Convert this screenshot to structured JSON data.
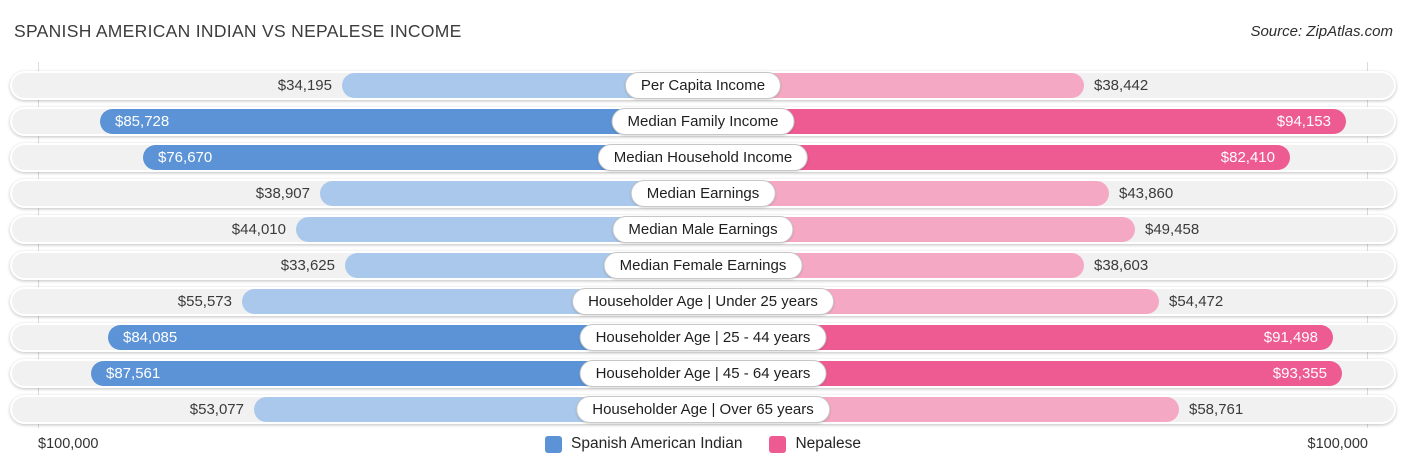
{
  "header": {
    "title": "SPANISH AMERICAN INDIAN VS NEPALESE INCOME",
    "source": "Source: ZipAtlas.com"
  },
  "axis": {
    "left_max_label": "$100,000",
    "right_max_label": "$100,000",
    "max_value": 100000
  },
  "legend": [
    {
      "label": "Spanish American Indian",
      "color": "#5b93d6"
    },
    {
      "label": "Nepalese",
      "color": "#ee5a92"
    }
  ],
  "chart_data": {
    "type": "bar",
    "orientation": "diverging-horizontal",
    "title": "Spanish American Indian vs Nepalese Income",
    "xlim": [
      0,
      100000
    ],
    "grid": "edge-lines-only",
    "legend_position": "bottom-center",
    "colors": {
      "blue": "#5b93d6",
      "blue_light": "#a9c8ec",
      "pink": "#ee5a92",
      "pink_light": "#f5a8c3"
    },
    "categories": [
      "Per Capita Income",
      "Median Family Income",
      "Median Household Income",
      "Median Earnings",
      "Median Male Earnings",
      "Median Female Earnings",
      "Householder Age | Under 25 years",
      "Householder Age | 25 - 44 years",
      "Householder Age | 45 - 64 years",
      "Householder Age | Over 65 years"
    ],
    "series": [
      {
        "name": "Spanish American Indian",
        "values": [
          34195,
          85728,
          76670,
          38907,
          44010,
          33625,
          55573,
          84085,
          87561,
          53077
        ]
      },
      {
        "name": "Nepalese",
        "values": [
          38442,
          94153,
          82410,
          43860,
          49458,
          38603,
          54472,
          91498,
          93355,
          58761
        ]
      }
    ],
    "rows": [
      {
        "label": "Per Capita Income",
        "left_value": 34195,
        "left_label": "$34,195",
        "right_value": 38442,
        "right_label": "$38,442",
        "dark": false
      },
      {
        "label": "Median Family Income",
        "left_value": 85728,
        "left_label": "$85,728",
        "right_value": 94153,
        "right_label": "$94,153",
        "dark": true
      },
      {
        "label": "Median Household Income",
        "left_value": 76670,
        "left_label": "$76,670",
        "right_value": 82410,
        "right_label": "$82,410",
        "dark": true
      },
      {
        "label": "Median Earnings",
        "left_value": 38907,
        "left_label": "$38,907",
        "right_value": 43860,
        "right_label": "$43,860",
        "dark": false
      },
      {
        "label": "Median Male Earnings",
        "left_value": 44010,
        "left_label": "$44,010",
        "right_value": 49458,
        "right_label": "$49,458",
        "dark": false
      },
      {
        "label": "Median Female Earnings",
        "left_value": 33625,
        "left_label": "$33,625",
        "right_value": 38603,
        "right_label": "$38,603",
        "dark": false
      },
      {
        "label": "Householder Age | Under 25 years",
        "left_value": 55573,
        "left_label": "$55,573",
        "right_value": 54472,
        "right_label": "$54,472",
        "dark": false
      },
      {
        "label": "Householder Age | 25 - 44 years",
        "left_value": 84085,
        "left_label": "$84,085",
        "right_value": 91498,
        "right_label": "$91,498",
        "dark": true
      },
      {
        "label": "Householder Age | 45 - 64 years",
        "left_value": 87561,
        "left_label": "$87,561",
        "right_value": 93355,
        "right_label": "$93,355",
        "dark": true
      },
      {
        "label": "Householder Age | Over 65 years",
        "left_value": 53077,
        "left_label": "$53,077",
        "right_value": 58761,
        "right_label": "$58,761",
        "dark": false
      }
    ]
  }
}
